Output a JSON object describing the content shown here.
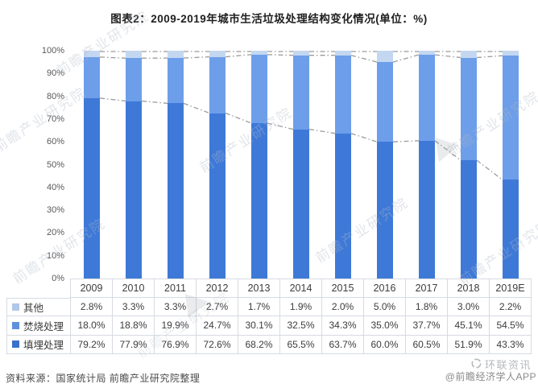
{
  "title": "图表2：2009-2019年城市生活垃圾处理结构变化情况(单位：%)",
  "chart_data": {
    "type": "bar",
    "stacked": true,
    "percent_stacked": true,
    "title": "图表2：2009-2019年城市生活垃圾处理结构变化情况(单位：%)",
    "categories": [
      "2009",
      "2010",
      "2011",
      "2012",
      "2013",
      "2014",
      "2015",
      "2016",
      "2017",
      "2018",
      "2019E"
    ],
    "series": [
      {
        "name": "填埋处理",
        "slug": "landfill",
        "color": "#3e79d8",
        "legend_color": "#3a70cc",
        "values": [
          79.2,
          77.9,
          76.9,
          72.6,
          68.2,
          65.5,
          63.7,
          60.0,
          60.5,
          51.9,
          43.3
        ]
      },
      {
        "name": "焚烧处理",
        "slug": "incineration",
        "color": "#6d9ee9",
        "legend_color": "#5e90dd",
        "values": [
          18.0,
          18.8,
          19.9,
          24.7,
          30.1,
          32.5,
          34.3,
          35.0,
          37.7,
          45.1,
          54.5
        ]
      },
      {
        "name": "其他",
        "slug": "other",
        "color": "#c3d7f1",
        "legend_color": "#b0c7e8",
        "values": [
          2.8,
          3.3,
          3.3,
          2.7,
          1.7,
          1.9,
          2.0,
          5.0,
          1.8,
          3.0,
          2.2
        ]
      }
    ],
    "y_ticks": [
      "0%",
      "10%",
      "20%",
      "30%",
      "40%",
      "50%",
      "60%",
      "70%",
      "80%",
      "90%",
      "100%"
    ],
    "ylim": [
      0,
      100
    ],
    "grid": false,
    "legend_position": "table-left",
    "series_lines": {
      "style": "dash-dot",
      "color": "#9b9b9b"
    }
  },
  "source_note": "资料来源：国家统计局 前瞻产业研究院整理",
  "footer_right": {
    "brand": "环联资讯",
    "credit": "@前瞻经济学人APP"
  },
  "watermark": {
    "text": "前瞻产业研究院"
  }
}
